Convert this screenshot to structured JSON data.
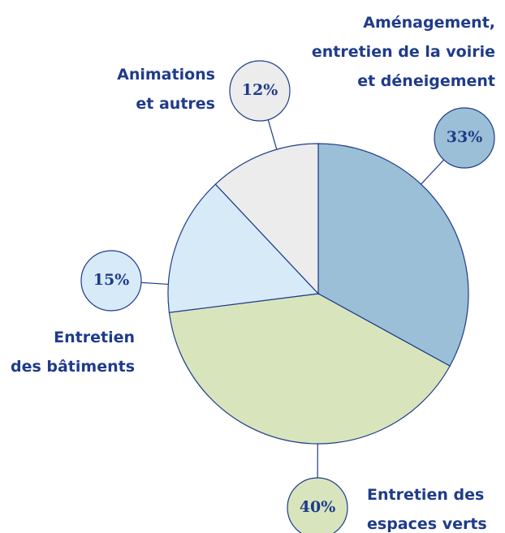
{
  "chart_data": {
    "type": "pie",
    "categories": [
      "Aménagement,\nentretien de la voirie\net déneigement",
      "Entretien des\nespaces verts",
      "Entretien\ndes bâtiments",
      "Animations\net autres"
    ],
    "values": [
      33,
      40,
      15,
      12
    ],
    "value_labels": [
      "33%",
      "40%",
      "15%",
      "12%"
    ],
    "colors": [
      "#9bbfd6",
      "#d8e5bc",
      "#d6eaf8",
      "#ececec"
    ]
  }
}
